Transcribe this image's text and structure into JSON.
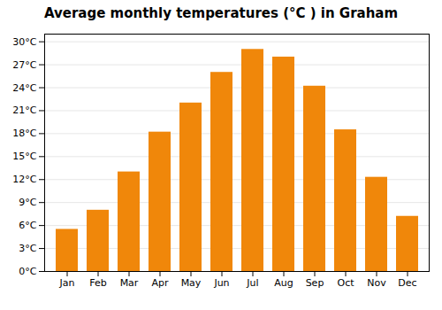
{
  "chart_data": {
    "type": "bar",
    "title": "Average monthly temperatures (°C ) in Graham",
    "categories": [
      "Jan",
      "Feb",
      "Mar",
      "Apr",
      "May",
      "Jun",
      "Jul",
      "Aug",
      "Sep",
      "Oct",
      "Nov",
      "Dec"
    ],
    "values": [
      5.5,
      8.0,
      13.0,
      18.2,
      22.0,
      26.0,
      29.0,
      28.0,
      24.2,
      18.5,
      12.3,
      7.2
    ],
    "color": "#F0870A",
    "ylim": [
      0,
      31
    ],
    "yticks": [
      {
        "value": 0,
        "label": "0°C"
      },
      {
        "value": 3,
        "label": "3°C"
      },
      {
        "value": 6,
        "label": "6°C"
      },
      {
        "value": 9,
        "label": "9°C"
      },
      {
        "value": 12,
        "label": "12°C"
      },
      {
        "value": 15,
        "label": "15°C"
      },
      {
        "value": 18,
        "label": "18°C"
      },
      {
        "value": 21,
        "label": "21°C"
      },
      {
        "value": 24,
        "label": "24°C"
      },
      {
        "value": 27,
        "label": "27°C"
      },
      {
        "value": 30,
        "label": "30°C"
      }
    ],
    "grid": true
  }
}
